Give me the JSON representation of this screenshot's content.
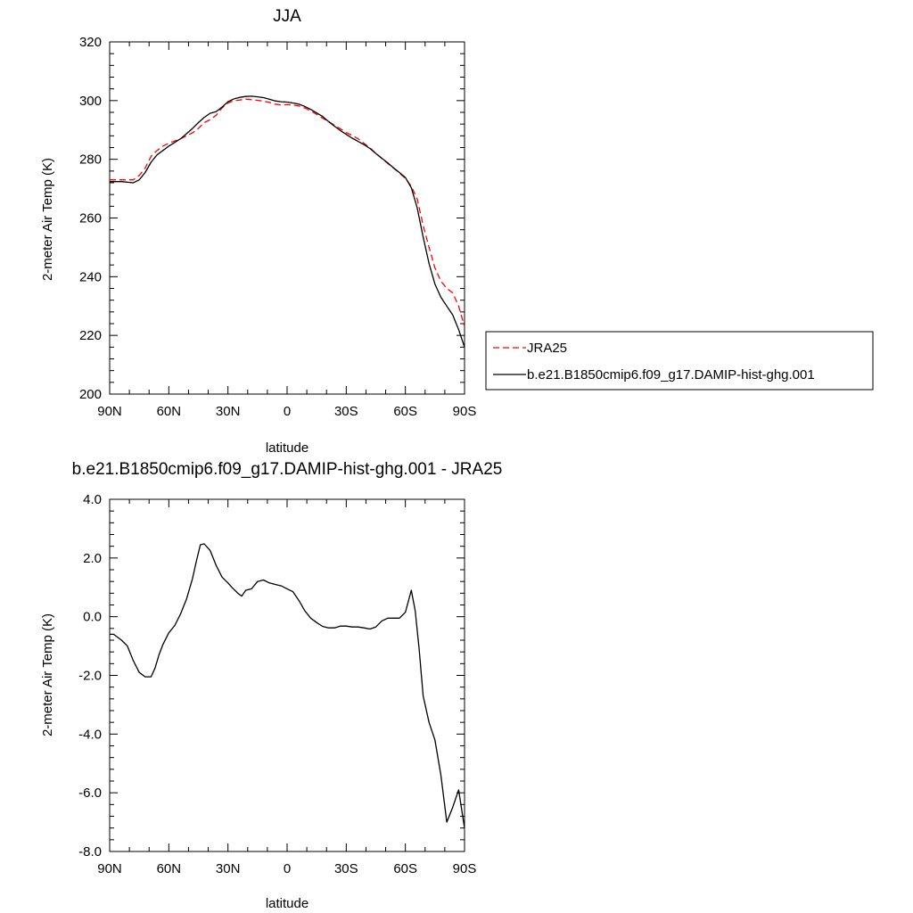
{
  "chart_data": [
    {
      "type": "line",
      "title": "JJA",
      "xlabel": "latitude",
      "ylabel": "2-meter Air Temp (K)",
      "xlim": [
        90,
        -90
      ],
      "ylim": [
        200,
        320
      ],
      "x_ticks": [
        90,
        60,
        30,
        0,
        -30,
        -60,
        -90
      ],
      "x_tick_labels": [
        "90N",
        "60N",
        "30N",
        "0",
        "30S",
        "60S",
        "90S"
      ],
      "y_ticks": [
        200,
        220,
        240,
        260,
        280,
        300,
        320
      ],
      "y_tick_labels": [
        "200",
        "220",
        "240",
        "260",
        "280",
        "300",
        "320"
      ],
      "legend_position": "outside-right",
      "series": [
        {
          "name": "JRA25",
          "color": "#ff0000",
          "dash": "dashed",
          "x": [
            90,
            84,
            78,
            75,
            72,
            69,
            66,
            63,
            60,
            54,
            48,
            45,
            42,
            39,
            36,
            33,
            30,
            27,
            24,
            21,
            18,
            15,
            12,
            9,
            6,
            3,
            0,
            -3,
            -6,
            -9,
            -12,
            -15,
            -18,
            -21,
            -24,
            -27,
            -30,
            -33,
            -36,
            -39,
            -42,
            -45,
            -48,
            -51,
            -54,
            -57,
            -60,
            -63,
            -66,
            -69,
            -72,
            -75,
            -78,
            -81,
            -84,
            -87,
            -90
          ],
          "y": [
            273,
            273,
            273,
            274.5,
            277,
            281,
            283,
            284.5,
            285.5,
            287,
            289,
            290.5,
            292.5,
            293.5,
            295,
            297.5,
            299.2,
            300,
            300.2,
            300.5,
            300.3,
            300.1,
            299.8,
            299.4,
            298.8,
            298.5,
            298.6,
            298.5,
            298.2,
            297.5,
            296.5,
            295.3,
            294,
            292.9,
            291.6,
            290.4,
            289.1,
            288.1,
            287,
            285.5,
            283.9,
            282.1,
            280.3,
            278.6,
            277,
            275.3,
            273.5,
            270.8,
            266.5,
            257.5,
            250,
            243,
            238.5,
            236,
            234.5,
            230,
            223
          ]
        },
        {
          "name": "b.e21.B1850cmip6.f09_g17.DAMIP-hist-ghg.001",
          "color": "#000000",
          "dash": "solid",
          "x": [
            90,
            84,
            78,
            75,
            72,
            69,
            66,
            63,
            60,
            54,
            48,
            45,
            42,
            39,
            36,
            33,
            30,
            27,
            24,
            21,
            18,
            15,
            12,
            9,
            6,
            3,
            0,
            -3,
            -6,
            -9,
            -12,
            -15,
            -18,
            -21,
            -24,
            -27,
            -30,
            -33,
            -36,
            -39,
            -42,
            -45,
            -48,
            -51,
            -54,
            -57,
            -60,
            -63,
            -66,
            -69,
            -72,
            -75,
            -78,
            -81,
            -84,
            -87,
            -90
          ],
          "y": [
            272.4,
            272.4,
            272,
            273,
            275.5,
            279,
            281.5,
            283,
            284.5,
            287,
            290.5,
            292.5,
            294.3,
            295.7,
            296.2,
            297.8,
            299.6,
            300.6,
            301.1,
            301.4,
            301.5,
            301.3,
            301,
            300.5,
            299.9,
            299.6,
            299.5,
            299.2,
            298.8,
            298,
            297,
            295.8,
            294.6,
            292.9,
            291.3,
            289.8,
            288.5,
            287.2,
            286.1,
            285,
            283.7,
            282,
            280.4,
            278.8,
            277.1,
            275.5,
            273.8,
            270.3,
            263.5,
            253.5,
            244.5,
            237.5,
            233,
            230,
            227,
            222,
            216
          ]
        }
      ]
    },
    {
      "type": "line",
      "title": "b.e21.B1850cmip6.f09_g17.DAMIP-hist-ghg.001 - JRA25",
      "xlabel": "latitude",
      "ylabel": "2-meter Air Temp (K)",
      "xlim": [
        90,
        -90
      ],
      "ylim": [
        -8,
        4
      ],
      "x_ticks": [
        90,
        60,
        30,
        0,
        -30,
        -60,
        -90
      ],
      "x_tick_labels": [
        "90N",
        "60N",
        "30N",
        "0",
        "30S",
        "60S",
        "90S"
      ],
      "y_ticks": [
        -8,
        -6,
        -4,
        -2,
        0,
        2,
        4
      ],
      "y_tick_labels": [
        "-8.0",
        "-6.0",
        "-4.0",
        "-2.0",
        "0.0",
        "2.0",
        "4.0"
      ],
      "series": [
        {
          "color": "#000000",
          "dash": "solid",
          "x": [
            90,
            88,
            84,
            81,
            78,
            75,
            72,
            69,
            67,
            65,
            63,
            60,
            57,
            54,
            51,
            48,
            46,
            44,
            42,
            39,
            36,
            33,
            30,
            28,
            25,
            23,
            21,
            18,
            15,
            12,
            9,
            6,
            3,
            0,
            -3,
            -6,
            -9,
            -12,
            -15,
            -18,
            -21,
            -24,
            -27,
            -30,
            -33,
            -36,
            -39,
            -42,
            -45,
            -48,
            -51,
            -54,
            -57,
            -60,
            -63,
            -65,
            -67,
            -69,
            -72,
            -75,
            -78,
            -81,
            -84,
            -87,
            -90
          ],
          "y": [
            -0.6,
            -0.6,
            -0.8,
            -1.0,
            -1.5,
            -1.9,
            -2.05,
            -2.05,
            -1.75,
            -1.3,
            -0.95,
            -0.55,
            -0.3,
            0.1,
            0.6,
            1.3,
            1.9,
            2.45,
            2.48,
            2.25,
            1.75,
            1.35,
            1.15,
            1.0,
            0.8,
            0.7,
            0.9,
            0.95,
            1.2,
            1.25,
            1.15,
            1.1,
            1.05,
            0.95,
            0.85,
            0.55,
            0.2,
            -0.05,
            -0.2,
            -0.33,
            -0.38,
            -0.38,
            -0.32,
            -0.32,
            -0.35,
            -0.35,
            -0.38,
            -0.42,
            -0.35,
            -0.15,
            -0.05,
            -0.05,
            -0.05,
            0.15,
            0.9,
            0.2,
            -1.1,
            -2.7,
            -3.6,
            -4.2,
            -5.4,
            -7.0,
            -6.5,
            -5.9,
            -7.2
          ]
        }
      ]
    }
  ]
}
